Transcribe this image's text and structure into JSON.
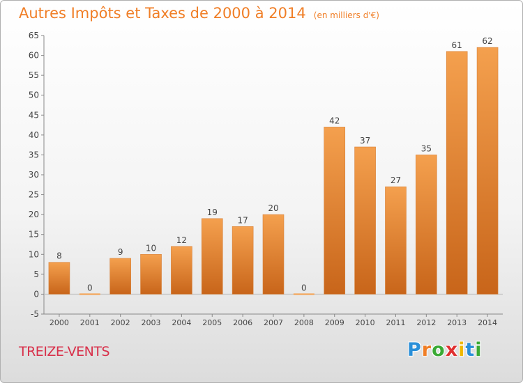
{
  "header": {
    "title": "Autres Impôts et Taxes de 2000 à 2014",
    "unit": "(en milliers d'€)"
  },
  "footer": {
    "place": "TREIZE-VENTS",
    "logo": [
      "P",
      "r",
      "o",
      "x",
      "i",
      "t",
      "i"
    ],
    "logo_colors": [
      "#2a8fd8",
      "#f07e26",
      "#3aaa35",
      "#e03030",
      "#f0b800",
      "#2a8fd8",
      "#3aaa35"
    ]
  },
  "chart_data": {
    "type": "bar",
    "title": "Autres Impôts et Taxes de 2000 à 2014",
    "subtitle": "(en milliers d'€)",
    "categories": [
      "2000",
      "2001",
      "2002",
      "2003",
      "2004",
      "2005",
      "2006",
      "2007",
      "2008",
      "2009",
      "2010",
      "2011",
      "2012",
      "2013",
      "2014"
    ],
    "values": [
      8,
      0,
      9,
      10,
      12,
      19,
      17,
      20,
      0,
      42,
      37,
      27,
      35,
      61,
      62
    ],
    "data_labels": [
      "8",
      "0",
      "9",
      "10",
      "12",
      "19",
      "17",
      "20",
      "0",
      "42",
      "37",
      "27",
      "35",
      "61",
      "62"
    ],
    "y_ticks": [
      "-5",
      "0",
      "5",
      "10",
      "15",
      "20",
      "25",
      "30",
      "35",
      "40",
      "45",
      "50",
      "55",
      "60",
      "65"
    ],
    "ylim": [
      -5,
      65
    ],
    "grid": false,
    "bar_color": "#f4a04e",
    "bar_color_dark": "#c8651a"
  }
}
